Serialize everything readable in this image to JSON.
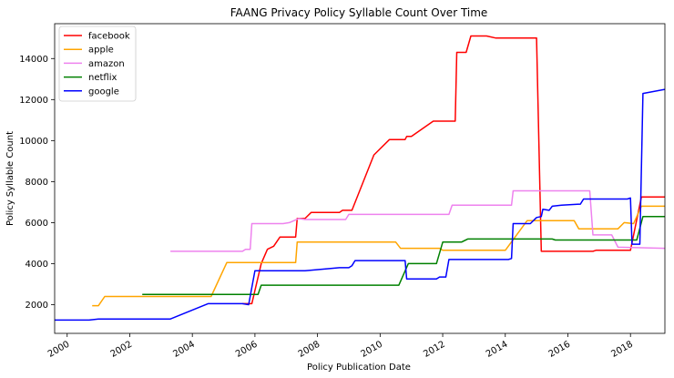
{
  "chart_data": {
    "type": "line",
    "title": "FAANG Privacy Policy Syllable Count Over Time",
    "xlabel": "Policy Publication Date",
    "ylabel": "Policy Syllable Count",
    "xlim": [
      1999.6,
      2019.1
    ],
    "ylim": [
      600,
      15700
    ],
    "x_ticks": [
      2000,
      2002,
      2004,
      2006,
      2008,
      2010,
      2012,
      2014,
      2016,
      2018
    ],
    "x_tick_labels": [
      "2000",
      "2002",
      "2004",
      "2006",
      "2008",
      "2010",
      "2012",
      "2014",
      "2016",
      "2018"
    ],
    "y_ticks": [
      2000,
      4000,
      6000,
      8000,
      10000,
      12000,
      14000
    ],
    "y_tick_labels": [
      "2000",
      "4000",
      "6000",
      "8000",
      "10000",
      "12000",
      "14000"
    ],
    "grid": false,
    "legend_position": "top-left",
    "series": [
      {
        "name": "facebook",
        "color": "#ff0000",
        "points": [
          [
            2005.6,
            2050
          ],
          [
            2005.9,
            2050
          ],
          [
            2006.2,
            4000
          ],
          [
            2006.4,
            4700
          ],
          [
            2006.6,
            4850
          ],
          [
            2006.8,
            5300
          ],
          [
            2007.3,
            5300
          ],
          [
            2007.35,
            6200
          ],
          [
            2007.6,
            6200
          ],
          [
            2007.8,
            6500
          ],
          [
            2008.7,
            6500
          ],
          [
            2008.8,
            6600
          ],
          [
            2009.1,
            6600
          ],
          [
            2009.8,
            9300
          ],
          [
            2010.3,
            10050
          ],
          [
            2010.8,
            10050
          ],
          [
            2010.85,
            10200
          ],
          [
            2011.0,
            10200
          ],
          [
            2011.7,
            10950
          ],
          [
            2012.4,
            10950
          ],
          [
            2012.45,
            14300
          ],
          [
            2012.75,
            14300
          ],
          [
            2012.9,
            15100
          ],
          [
            2013.4,
            15100
          ],
          [
            2013.7,
            15000
          ],
          [
            2015.0,
            15000
          ],
          [
            2015.15,
            4600
          ],
          [
            2016.8,
            4600
          ],
          [
            2016.9,
            4650
          ],
          [
            2018.0,
            4650
          ],
          [
            2018.35,
            7250
          ],
          [
            2019.1,
            7250
          ]
        ]
      },
      {
        "name": "apple",
        "color": "#ffa500",
        "points": [
          [
            2000.8,
            1950
          ],
          [
            2001.0,
            1950
          ],
          [
            2001.2,
            2400
          ],
          [
            2004.6,
            2400
          ],
          [
            2005.1,
            4050
          ],
          [
            2007.3,
            4050
          ],
          [
            2007.35,
            5050
          ],
          [
            2010.5,
            5050
          ],
          [
            2010.65,
            4750
          ],
          [
            2011.9,
            4750
          ],
          [
            2012.0,
            4650
          ],
          [
            2014.0,
            4650
          ],
          [
            2014.7,
            6100
          ],
          [
            2016.2,
            6100
          ],
          [
            2016.35,
            5700
          ],
          [
            2017.6,
            5700
          ],
          [
            2017.8,
            6000
          ],
          [
            2018.1,
            5950
          ],
          [
            2018.35,
            6800
          ],
          [
            2019.1,
            6800
          ]
        ]
      },
      {
        "name": "amazon",
        "color": "#ee82ee",
        "points": [
          [
            2003.3,
            4600
          ],
          [
            2005.6,
            4600
          ],
          [
            2005.7,
            4700
          ],
          [
            2005.85,
            4700
          ],
          [
            2005.9,
            5950
          ],
          [
            2006.9,
            5950
          ],
          [
            2007.1,
            6000
          ],
          [
            2007.4,
            6200
          ],
          [
            2007.6,
            6150
          ],
          [
            2008.9,
            6150
          ],
          [
            2009.0,
            6400
          ],
          [
            2012.2,
            6400
          ],
          [
            2012.3,
            6850
          ],
          [
            2014.2,
            6850
          ],
          [
            2014.25,
            7550
          ],
          [
            2016.7,
            7550
          ],
          [
            2016.8,
            5400
          ],
          [
            2017.4,
            5400
          ],
          [
            2017.6,
            4800
          ],
          [
            2019.1,
            4750
          ]
        ]
      },
      {
        "name": "netflix",
        "color": "#008000",
        "points": [
          [
            2002.4,
            2500
          ],
          [
            2006.1,
            2500
          ],
          [
            2006.2,
            2950
          ],
          [
            2010.6,
            2950
          ],
          [
            2010.9,
            4000
          ],
          [
            2011.8,
            4000
          ],
          [
            2012.0,
            5050
          ],
          [
            2012.6,
            5050
          ],
          [
            2012.8,
            5200
          ],
          [
            2015.5,
            5200
          ],
          [
            2015.6,
            5150
          ],
          [
            2018.2,
            5150
          ],
          [
            2018.4,
            6300
          ],
          [
            2019.1,
            6300
          ]
        ]
      },
      {
        "name": "google",
        "color": "#0000ff",
        "points": [
          [
            1999.6,
            1250
          ],
          [
            2000.7,
            1250
          ],
          [
            2001.0,
            1300
          ],
          [
            2003.3,
            1300
          ],
          [
            2004.5,
            2050
          ],
          [
            2005.6,
            2050
          ],
          [
            2005.8,
            2000
          ],
          [
            2006.0,
            3650
          ],
          [
            2007.6,
            3650
          ],
          [
            2008.3,
            3750
          ],
          [
            2008.7,
            3800
          ],
          [
            2009.0,
            3800
          ],
          [
            2009.1,
            3900
          ],
          [
            2009.2,
            4150
          ],
          [
            2010.8,
            4150
          ],
          [
            2010.85,
            3250
          ],
          [
            2011.8,
            3250
          ],
          [
            2011.9,
            3350
          ],
          [
            2012.1,
            3350
          ],
          [
            2012.2,
            4200
          ],
          [
            2014.1,
            4200
          ],
          [
            2014.2,
            4250
          ],
          [
            2014.25,
            5950
          ],
          [
            2014.8,
            5950
          ],
          [
            2015.0,
            6250
          ],
          [
            2015.15,
            6300
          ],
          [
            2015.2,
            6650
          ],
          [
            2015.4,
            6600
          ],
          [
            2015.5,
            6800
          ],
          [
            2015.8,
            6850
          ],
          [
            2016.4,
            6900
          ],
          [
            2016.5,
            7150
          ],
          [
            2017.9,
            7150
          ],
          [
            2018.0,
            7200
          ],
          [
            2018.05,
            4950
          ],
          [
            2018.3,
            4950
          ],
          [
            2018.4,
            12300
          ],
          [
            2019.1,
            12500
          ]
        ]
      }
    ]
  }
}
